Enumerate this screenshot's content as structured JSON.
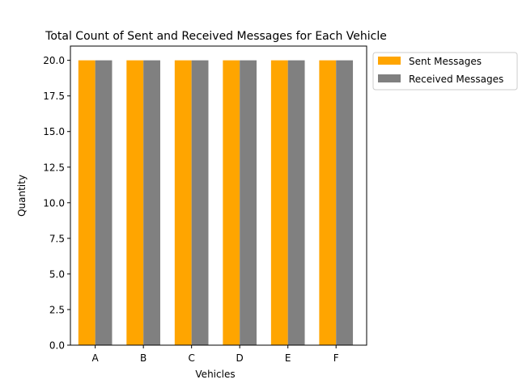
{
  "chart_data": {
    "type": "bar",
    "title": "Total Count of Sent and Received Messages for Each Vehicle",
    "xlabel": "Vehicles",
    "ylabel": "Quantity",
    "categories": [
      "A",
      "B",
      "C",
      "D",
      "E",
      "F"
    ],
    "series": [
      {
        "name": "Sent Messages",
        "values": [
          20,
          20,
          20,
          20,
          20,
          20
        ],
        "color": "#ffa500"
      },
      {
        "name": "Received Messages",
        "values": [
          20,
          20,
          20,
          20,
          20,
          20
        ],
        "color": "#808080"
      }
    ],
    "ylim": [
      0,
      21
    ],
    "yticks": [
      "0.0",
      "2.5",
      "5.0",
      "7.5",
      "10.0",
      "12.5",
      "15.0",
      "17.5",
      "20.0"
    ],
    "grid": false,
    "legend_position": "outside upper right"
  }
}
